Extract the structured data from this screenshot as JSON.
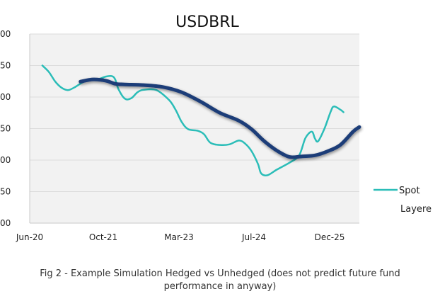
{
  "chart_data": {
    "type": "line",
    "title": "USDBRL",
    "xlabel": "",
    "ylabel": "",
    "x_tick_labels": [
      "Jun-20",
      "Oct-21",
      "Mar-23",
      "Jul-24",
      "Dec-25"
    ],
    "y_tick_labels": [
      "00",
      "50",
      "00",
      "50",
      "00",
      "50",
      "00"
    ],
    "ylim": [
      0,
      6
    ],
    "xlim": [
      0,
      104
    ],
    "grid": true,
    "legend_position": "right",
    "series": [
      {
        "name": "Spot",
        "color": "#2bbdb8",
        "points": [
          [
            4,
            5
          ],
          [
            6,
            4.8
          ],
          [
            8,
            4.5
          ],
          [
            10,
            4.3
          ],
          [
            12,
            4.22
          ],
          [
            14,
            4.3
          ],
          [
            17,
            4.48
          ],
          [
            20,
            4.56
          ],
          [
            22,
            4.58
          ],
          [
            24,
            4.65
          ],
          [
            26,
            4.66
          ],
          [
            27,
            4.55
          ],
          [
            28,
            4.25
          ],
          [
            30,
            3.95
          ],
          [
            32,
            3.96
          ],
          [
            34,
            4.15
          ],
          [
            36,
            4.23
          ],
          [
            40,
            4.22
          ],
          [
            44,
            3.9
          ],
          [
            46,
            3.6
          ],
          [
            48,
            3.2
          ],
          [
            50,
            2.98
          ],
          [
            53,
            2.93
          ],
          [
            55,
            2.82
          ],
          [
            57,
            2.55
          ],
          [
            60,
            2.48
          ],
          [
            63,
            2.5
          ],
          [
            66,
            2.62
          ],
          [
            68,
            2.52
          ],
          [
            70,
            2.28
          ],
          [
            72,
            1.88
          ],
          [
            73,
            1.58
          ],
          [
            75,
            1.52
          ],
          [
            78,
            1.7
          ],
          [
            82,
            1.92
          ],
          [
            85,
            2.15
          ],
          [
            87,
            2.7
          ],
          [
            89,
            2.9
          ],
          [
            90,
            2.68
          ],
          [
            91,
            2.6
          ],
          [
            93,
            3
          ],
          [
            95,
            3.55
          ],
          [
            96,
            3.7
          ],
          [
            98,
            3.6
          ],
          [
            99,
            3.52
          ]
        ]
      },
      {
        "name": "Layered",
        "color": "#1e3c78",
        "points": [
          [
            16,
            4.49
          ],
          [
            20,
            4.56
          ],
          [
            24,
            4.52
          ],
          [
            27,
            4.42
          ],
          [
            30,
            4.4
          ],
          [
            36,
            4.38
          ],
          [
            42,
            4.32
          ],
          [
            48,
            4.15
          ],
          [
            54,
            3.85
          ],
          [
            60,
            3.5
          ],
          [
            66,
            3.25
          ],
          [
            70,
            2.98
          ],
          [
            74,
            2.6
          ],
          [
            78,
            2.3
          ],
          [
            82,
            2.1
          ],
          [
            86,
            2.12
          ],
          [
            90,
            2.15
          ],
          [
            94,
            2.28
          ],
          [
            98,
            2.48
          ],
          [
            102,
            2.9
          ],
          [
            104,
            3.05
          ]
        ]
      }
    ]
  },
  "legend": {
    "items": [
      {
        "label": "Spot"
      },
      {
        "label": "Layere"
      }
    ]
  },
  "caption": {
    "line1": "Fig  2 - Example Simulation Hedged vs Unhedged (does not predict future fund",
    "line2": "performance in anyway)"
  }
}
